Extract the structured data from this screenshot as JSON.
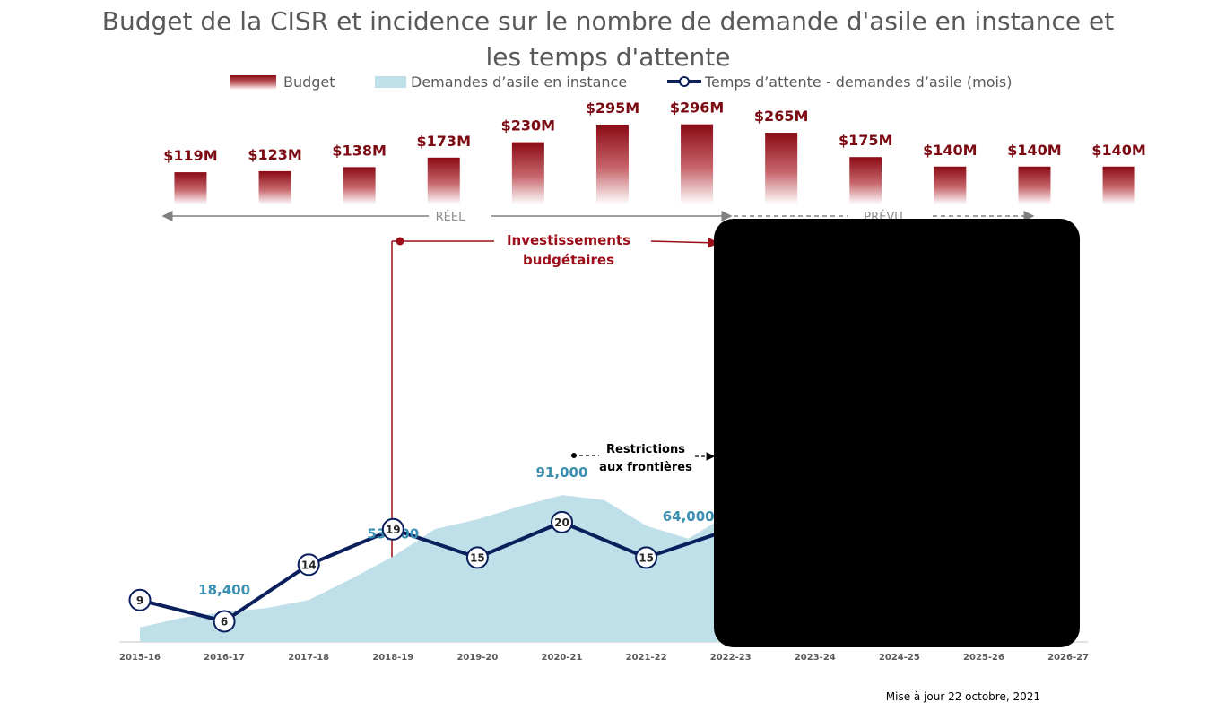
{
  "chart_data": {
    "type": "bar+area+line",
    "title": "Budget de la CISR et incidence sur le nombre de demande d'asile en instance et les temps d'attente",
    "categories": [
      "2015-16",
      "2016-17",
      "2017-18",
      "2018-19",
      "2019-20",
      "2020-21",
      "2021-22",
      "2022-23",
      "2023-24",
      "2024-25",
      "2025-26",
      "2026-27"
    ],
    "legend": {
      "budget": "Budget",
      "pending": "Demandes d’asile en instance",
      "wait": "Temps d’attente - demandes d’asile (mois)"
    },
    "budget": {
      "name": "Budget",
      "values": [
        119,
        123,
        138,
        173,
        230,
        295,
        296,
        265,
        175,
        140,
        140,
        140
      ],
      "labels": [
        "$119M",
        "$123M",
        "$138M",
        "$173M",
        "$230M",
        "$295M",
        "$296M",
        "$265M",
        "$175M",
        "$140M",
        "$140M",
        "$140M"
      ],
      "color": "#8b0a14"
    },
    "pending_claims": {
      "name": "Demandes d’asile en instance",
      "x": [
        0,
        0.5,
        1,
        1.5,
        2,
        2.5,
        3,
        3.5,
        4,
        4.5,
        5,
        5.5,
        6,
        6.5,
        7,
        7.5
      ],
      "values": [
        9000,
        15000,
        18400,
        21000,
        26000,
        39000,
        53000,
        70000,
        76000,
        84000,
        91000,
        88000,
        72000,
        64000,
        80000,
        88000
      ],
      "labels": [
        {
          "index": 1,
          "text": "18,400"
        },
        {
          "index": 3,
          "text": "53,000"
        },
        {
          "index": 5,
          "text": "91,000"
        },
        {
          "index": 6.5,
          "text": "64,000"
        }
      ],
      "color": "#bfdfe9"
    },
    "wait_time": {
      "name": "Temps d’attente - demandes d’asile (mois)",
      "values": [
        9,
        6,
        14,
        19,
        15,
        20,
        15,
        19
      ],
      "labels": [
        "9",
        "6",
        "14",
        "19",
        "15",
        "20",
        "15",
        ""
      ],
      "color": "#0a1f5c"
    },
    "annotations": {
      "real": "RÉEL",
      "forecast": "PRÉVU",
      "investments": [
        "Investissements",
        "budgétaires"
      ],
      "restrictions": [
        "Restrictions",
        "aux frontières"
      ]
    },
    "footnote": "Mise à jour 22 octobre, 2021",
    "redacted_region": true
  }
}
